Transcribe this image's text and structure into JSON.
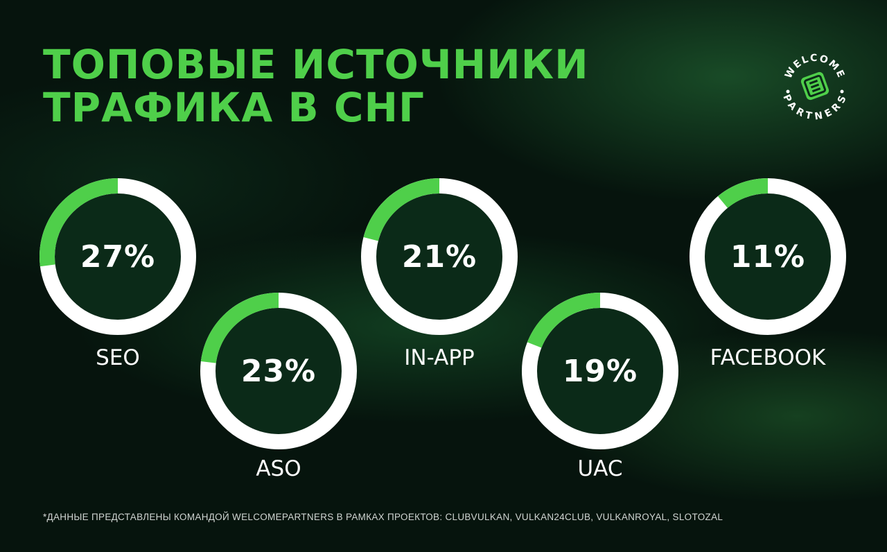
{
  "title": {
    "line1": "ТОПОВЫЕ ИСТОЧНИКИ",
    "line2": "ТРАФИКА В СНГ"
  },
  "logo": {
    "top_text": "WELCOME",
    "bottom_text": "PARTNERS",
    "color": "#4fcf4a"
  },
  "colors": {
    "accent": "#4fcf4a",
    "ring_track": "#ffffff",
    "ring_inner": "#0b2a18"
  },
  "chart_data": {
    "type": "pie",
    "unit": "%",
    "items": [
      {
        "label": "SEO",
        "value": 27,
        "display": "27%"
      },
      {
        "label": "ASO",
        "value": 23,
        "display": "23%"
      },
      {
        "label": "IN-APP",
        "value": 21,
        "display": "21%"
      },
      {
        "label": "UAC",
        "value": 19,
        "display": "19%"
      },
      {
        "label": "FACEBOOK",
        "value": 11,
        "display": "11%"
      }
    ]
  },
  "footnote": "*ДАННЫЕ ПРЕДСТАВЛЕНЫ КОМАНДОЙ WELCOMEPARTNERS В РАМКАХ ПРОЕКТОВ: CLUBVULKAN, VULKAN24CLUB, VULKANROYAL, SLOTOZAL"
}
